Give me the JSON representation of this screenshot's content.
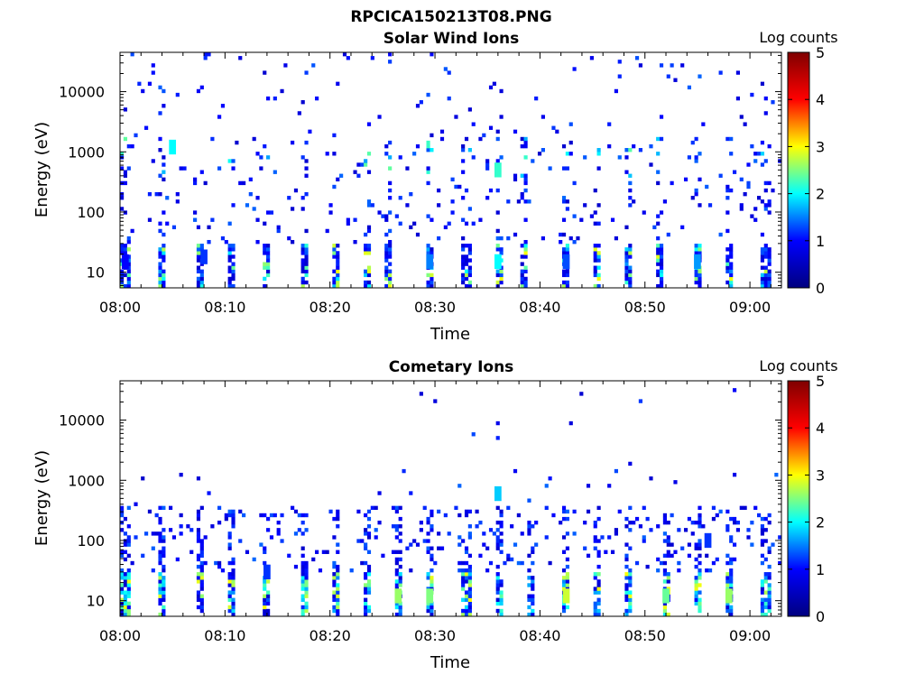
{
  "figure_title": "RPCICA150213T08.PNG",
  "colorbar_colors": [
    "#00007f",
    "#0000ff",
    "#00ffff",
    "#ffff00",
    "#ff0000",
    "#7f0000"
  ],
  "chart_data": [
    {
      "type": "heatmap",
      "title": "Solar Wind Ions",
      "xlabel": "Time",
      "ylabel": "Energy (eV)",
      "x_ticks": [
        "08:00",
        "08:10",
        "08:20",
        "08:30",
        "08:40",
        "08:50",
        "09:00"
      ],
      "y_ticks": [
        "10",
        "100",
        "1000",
        "10000"
      ],
      "y_scale": "log",
      "ylim": [
        5.5,
        45000
      ],
      "x_range_minutes": [
        0,
        63
      ],
      "colorbar": {
        "label": "Log counts",
        "ticks": [
          "0",
          "1",
          "2",
          "3",
          "4",
          "5"
        ],
        "range": [
          0,
          5
        ]
      },
      "pattern": {
        "spike_times": [
          0.5,
          4,
          7.5,
          10.5,
          14,
          17.5,
          20.5,
          23.5,
          25.5,
          29.5,
          33,
          36,
          38.5,
          42.5,
          45.5,
          48.5,
          51.5,
          55,
          58,
          61.5
        ],
        "sample_points": [
          [
            0.5,
            15,
            1.0
          ],
          [
            8,
            18,
            1.2
          ],
          [
            29.5,
            15,
            1.5
          ],
          [
            36,
            15,
            2.0
          ],
          [
            36,
            500,
            2.2
          ],
          [
            42.5,
            15,
            1.3
          ],
          [
            55,
            15,
            1.6
          ],
          [
            5,
            1200,
            2.0
          ]
        ]
      }
    },
    {
      "type": "heatmap",
      "title": "Cometary Ions",
      "xlabel": "Time",
      "ylabel": "Energy (eV)",
      "x_ticks": [
        "08:00",
        "08:10",
        "08:20",
        "08:30",
        "08:40",
        "08:50",
        "09:00"
      ],
      "y_ticks": [
        "10",
        "100",
        "1000",
        "10000"
      ],
      "y_scale": "log",
      "ylim": [
        5.5,
        45000
      ],
      "x_range_minutes": [
        0,
        63
      ],
      "colorbar": {
        "label": "Log counts",
        "ticks": [
          "0",
          "1",
          "2",
          "3",
          "4",
          "5"
        ],
        "range": [
          0,
          5
        ]
      },
      "pattern": {
        "spike_times": [
          0.5,
          4,
          7.5,
          10.5,
          14,
          17.5,
          20.5,
          23.5,
          26.5,
          29.5,
          33,
          36,
          39,
          42.5,
          45.5,
          48.5,
          52,
          55,
          58,
          61.5
        ],
        "sample_points": [
          [
            26.5,
            12,
            2.6
          ],
          [
            29.5,
            12,
            2.5
          ],
          [
            42.5,
            12,
            2.8
          ],
          [
            58,
            12,
            2.6
          ],
          [
            52,
            12,
            2.4
          ],
          [
            36,
            600,
            1.8
          ],
          [
            14,
            30,
            1.2
          ],
          [
            56,
            100,
            1.2
          ]
        ]
      }
    }
  ]
}
